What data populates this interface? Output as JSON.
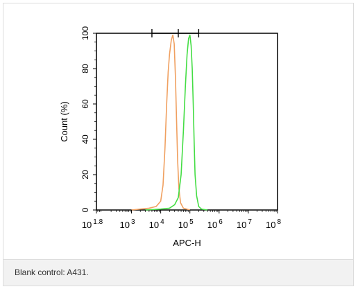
{
  "caption": "Blank control: A431.",
  "chart_data": {
    "type": "histogram",
    "xlabel": "APC-H",
    "ylabel": "Count  (%)",
    "x_scale": "log",
    "xlim": [
      63,
      100000000
    ],
    "ylim": [
      0,
      100
    ],
    "x_ticks": [
      {
        "base": "10",
        "exp": "1.8",
        "value": 63
      },
      {
        "base": "10",
        "exp": "3",
        "value": 1000
      },
      {
        "base": "10",
        "exp": "4",
        "value": 10000
      },
      {
        "base": "10",
        "exp": "5",
        "value": 100000
      },
      {
        "base": "10",
        "exp": "6",
        "value": 1000000
      },
      {
        "base": "10",
        "exp": "7",
        "value": 10000000
      },
      {
        "base": "10",
        "exp": "8",
        "value": 100000000
      }
    ],
    "y_ticks": [
      "0",
      "20",
      "40",
      "60",
      "80",
      "100"
    ],
    "gate": {
      "x_start": 5000,
      "x_mid": 40000,
      "x_end": 200000,
      "y": 100
    },
    "series": [
      {
        "color": "#f0a060",
        "x": [
          1000,
          2000,
          4000,
          7000,
          10000,
          12000,
          14000,
          16000,
          18000,
          20000,
          23000,
          26000,
          29000,
          32000,
          35000,
          38000,
          42000,
          48000,
          60000,
          100000
        ],
        "y": [
          0,
          0.5,
          1,
          2,
          5,
          14,
          35,
          60,
          78,
          88,
          96,
          99,
          94,
          75,
          50,
          28,
          12,
          4,
          1,
          0
        ]
      },
      {
        "color": "#44dd44",
        "x": [
          3000,
          10000,
          20000,
          30000,
          40000,
          50000,
          60000,
          70000,
          80000,
          90000,
          100000,
          110000,
          120000,
          130000,
          140000,
          150000,
          170000,
          200000,
          250000,
          400000
        ],
        "y": [
          0,
          0.5,
          1,
          3,
          7,
          20,
          45,
          70,
          88,
          97,
          99,
          93,
          80,
          60,
          38,
          20,
          8,
          2,
          0.5,
          0
        ]
      }
    ]
  }
}
